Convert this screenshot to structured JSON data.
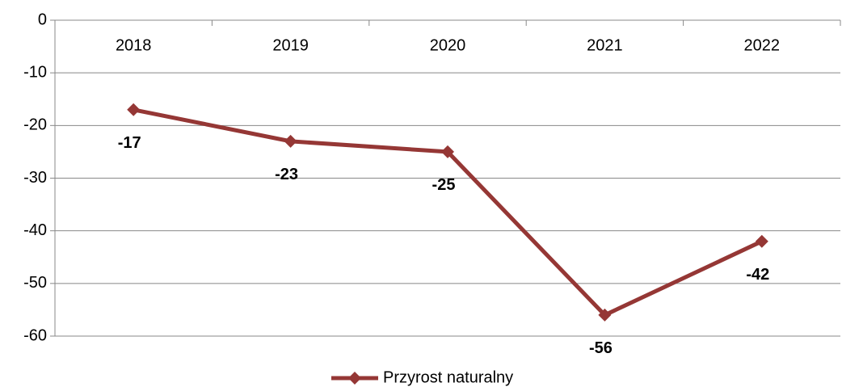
{
  "chart_data": {
    "type": "line",
    "categories": [
      "2018",
      "2019",
      "2020",
      "2021",
      "2022"
    ],
    "series": [
      {
        "name": "Przyrost naturalny",
        "color": "#953735",
        "values": [
          -17,
          -23,
          -25,
          -56,
          -42
        ]
      }
    ],
    "ylim": [
      -60,
      0
    ],
    "yticks": [
      0,
      -10,
      -20,
      -30,
      -40,
      -50,
      -60
    ],
    "grid": true,
    "legend": "bottom"
  }
}
